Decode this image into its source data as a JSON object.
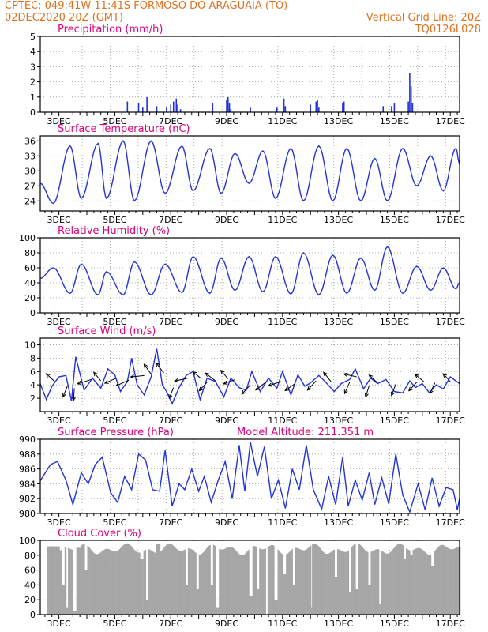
{
  "header": {
    "line1_left": "CPTEC:   049:41W-11:41S   FORMOSO DO ARAGUAIA (TO)",
    "line2_left": "02DEC2020 20Z (GMT)",
    "line2_right": "Vertical Grid Line: 20Z",
    "line3_right": "TQ0126L028"
  },
  "colors": {
    "header": "#e0701e",
    "title": "#e0007a",
    "line": "#2233dd",
    "bar": "#2233dd",
    "cloud": "#a6a6a6",
    "arrow": "#000000"
  },
  "chart_data": [
    {
      "id": "precip",
      "type": "bar",
      "title": "Precipitation (mm/h)",
      "extra_title": "",
      "xlabel": "",
      "ylabel": "",
      "x_range_days": [
        2.333,
        17.333
      ],
      "ylim": [
        0,
        5
      ],
      "yticks": [
        "0",
        "1",
        "2",
        "3",
        "4",
        "5"
      ],
      "x_tick_labels": [
        "3DEC",
        "5DEC",
        "7DEC",
        "9DEC",
        "11DEC",
        "13DEC",
        "15DEC",
        "17DEC"
      ],
      "grid": true,
      "bars": [
        [
          5.45,
          0.7
        ],
        [
          5.85,
          0.6
        ],
        [
          6.0,
          0.3
        ],
        [
          6.15,
          1.0
        ],
        [
          6.5,
          0.4
        ],
        [
          6.85,
          0.3
        ],
        [
          7.0,
          0.5
        ],
        [
          7.1,
          0.7
        ],
        [
          7.2,
          0.9
        ],
        [
          7.25,
          0.5
        ],
        [
          7.35,
          0.2
        ],
        [
          8.5,
          0.6
        ],
        [
          9.0,
          0.8
        ],
        [
          9.05,
          1.0
        ],
        [
          9.1,
          0.6
        ],
        [
          9.15,
          0.2
        ],
        [
          9.85,
          0.3
        ],
        [
          10.8,
          0.3
        ],
        [
          11.05,
          0.9
        ],
        [
          11.1,
          0.4
        ],
        [
          12.0,
          0.5
        ],
        [
          12.2,
          0.7
        ],
        [
          12.25,
          0.8
        ],
        [
          12.3,
          0.3
        ],
        [
          13.15,
          0.6
        ],
        [
          13.2,
          0.7
        ],
        [
          14.6,
          0.4
        ],
        [
          14.9,
          0.4
        ],
        [
          15.0,
          0.6
        ],
        [
          15.5,
          0.7
        ],
        [
          15.55,
          2.6
        ],
        [
          15.6,
          1.7
        ],
        [
          15.65,
          0.6
        ]
      ]
    },
    {
      "id": "temp",
      "type": "line",
      "title": "Surface Temperature (nC)",
      "extra_title": "",
      "xlabel": "",
      "ylabel": "",
      "x_range_days": [
        2.333,
        17.333
      ],
      "ylim": [
        22,
        37
      ],
      "yticks": [
        "24",
        "27",
        "30",
        "33",
        "36"
      ],
      "ytick_values": [
        24,
        27,
        30,
        33,
        36
      ],
      "x_tick_labels": [
        "3DEC",
        "5DEC",
        "7DEC",
        "9DEC",
        "11DEC",
        "13DEC",
        "15DEC",
        "17DEC"
      ],
      "grid": true,
      "min_days": [
        2.8,
        3.8,
        4.7,
        5.7,
        6.8,
        7.8,
        8.8,
        9.8,
        10.75,
        11.75,
        12.8,
        13.8,
        14.75,
        15.8,
        16.75
      ],
      "min_vals": [
        23.5,
        24.5,
        24.5,
        24.0,
        25.5,
        26.0,
        25.5,
        27.5,
        24.5,
        24.0,
        24.0,
        24.0,
        24.0,
        27.0,
        26.0
      ],
      "max_days": [
        3.4,
        4.4,
        5.3,
        6.3,
        7.4,
        8.4,
        9.3,
        10.3,
        11.3,
        12.3,
        13.3,
        14.3,
        15.3,
        16.3,
        17.2
      ],
      "max_vals": [
        35.0,
        35.5,
        36.0,
        36.0,
        35.0,
        34.5,
        33.5,
        34.0,
        34.5,
        35.0,
        34.5,
        32.5,
        34.5,
        33.0,
        34.5
      ],
      "start": 27.5,
      "end": 31.5
    },
    {
      "id": "rh",
      "type": "line",
      "title": "Relative Humidity (%)",
      "extra_title": "",
      "xlabel": "",
      "ylabel": "",
      "x_range_days": [
        2.333,
        17.333
      ],
      "ylim": [
        0,
        100
      ],
      "yticks": [
        "0",
        "20",
        "40",
        "60",
        "80",
        "100"
      ],
      "ytick_values": [
        0,
        20,
        40,
        60,
        80,
        100
      ],
      "x_tick_labels": [
        "3DEC",
        "5DEC",
        "7DEC",
        "9DEC",
        "11DEC",
        "13DEC",
        "15DEC",
        "17DEC"
      ],
      "grid": true,
      "min_days": [
        3.4,
        4.4,
        5.3,
        6.3,
        7.4,
        8.4,
        9.3,
        10.3,
        11.3,
        12.3,
        13.3,
        14.3,
        15.3,
        16.3,
        17.2
      ],
      "min_vals": [
        26,
        24,
        24,
        24,
        27,
        26,
        30,
        28,
        25,
        24,
        26,
        30,
        26,
        30,
        32
      ],
      "max_days": [
        2.8,
        3.8,
        4.7,
        5.7,
        6.8,
        7.8,
        8.8,
        9.8,
        10.75,
        11.75,
        12.8,
        13.8,
        14.75,
        15.8,
        16.75
      ],
      "max_vals": [
        60,
        65,
        55,
        68,
        65,
        75,
        73,
        75,
        75,
        80,
        77,
        73,
        88,
        62,
        60
      ],
      "start": 46,
      "end": 40
    },
    {
      "id": "wind",
      "type": "line",
      "title": "Surface Wind (m/s)",
      "extra_title": "",
      "xlabel": "",
      "ylabel": "",
      "x_range_days": [
        2.333,
        17.333
      ],
      "ylim": [
        0,
        11
      ],
      "yticks": [
        "2",
        "4",
        "6",
        "8",
        "10"
      ],
      "ytick_values": [
        2,
        4,
        6,
        8,
        10
      ],
      "x_tick_labels": [
        "3DEC",
        "5DEC",
        "7DEC",
        "9DEC",
        "11DEC",
        "13DEC",
        "15DEC",
        "17DEC"
      ],
      "grid": true,
      "points": [
        [
          2.33,
          4.2
        ],
        [
          2.55,
          1.8
        ],
        [
          2.75,
          3.8
        ],
        [
          3.0,
          5.2
        ],
        [
          3.25,
          5.4
        ],
        [
          3.45,
          1.6
        ],
        [
          3.6,
          8.2
        ],
        [
          3.9,
          3.2
        ],
        [
          4.2,
          5.0
        ],
        [
          4.5,
          3.5
        ],
        [
          4.75,
          6.4
        ],
        [
          5.0,
          5.5
        ],
        [
          5.2,
          3.0
        ],
        [
          5.45,
          4.5
        ],
        [
          5.6,
          8.0
        ],
        [
          5.8,
          4.0
        ],
        [
          6.05,
          2.5
        ],
        [
          6.3,
          5.2
        ],
        [
          6.5,
          9.4
        ],
        [
          6.7,
          4.0
        ],
        [
          6.85,
          3.0
        ],
        [
          7.05,
          1.2
        ],
        [
          7.3,
          3.6
        ],
        [
          7.55,
          5.4
        ],
        [
          7.8,
          6.0
        ],
        [
          8.05,
          1.8
        ],
        [
          8.3,
          5.0
        ],
        [
          8.6,
          4.5
        ],
        [
          8.9,
          2.2
        ],
        [
          9.15,
          5.0
        ],
        [
          9.45,
          3.6
        ],
        [
          9.7,
          3.2
        ],
        [
          9.9,
          6.0
        ],
        [
          10.2,
          3.0
        ],
        [
          10.5,
          5.0
        ],
        [
          10.8,
          3.5
        ],
        [
          11.0,
          6.0
        ],
        [
          11.3,
          2.5
        ],
        [
          11.55,
          5.5
        ],
        [
          11.8,
          3.8
        ],
        [
          12.0,
          4.3
        ],
        [
          12.3,
          5.4
        ],
        [
          12.5,
          4.6
        ],
        [
          12.85,
          3.0
        ],
        [
          13.1,
          4.2
        ],
        [
          13.4,
          4.8
        ],
        [
          13.6,
          6.4
        ],
        [
          13.9,
          3.4
        ],
        [
          14.15,
          5.0
        ],
        [
          14.4,
          4.2
        ],
        [
          14.7,
          4.8
        ],
        [
          15.0,
          3.0
        ],
        [
          15.3,
          2.8
        ],
        [
          15.55,
          4.6
        ],
        [
          15.75,
          3.6
        ],
        [
          16.0,
          4.2
        ],
        [
          16.25,
          2.8
        ],
        [
          16.5,
          4.0
        ],
        [
          16.75,
          3.4
        ],
        [
          17.0,
          5.2
        ],
        [
          17.33,
          4.2
        ]
      ],
      "arrows": [
        [
          2.85,
          4.5,
          -0.6,
          -0.55
        ],
        [
          3.3,
          3.8,
          -0.3,
          0.75
        ],
        [
          3.55,
          3.5,
          -0.05,
          0.85
        ],
        [
          4.15,
          4.8,
          -0.95,
          0.3
        ],
        [
          4.5,
          4.6,
          -0.5,
          -0.6
        ],
        [
          5.05,
          5.0,
          -0.8,
          0.35
        ],
        [
          5.5,
          4.7,
          -0.9,
          0.4
        ],
        [
          6.05,
          5.4,
          -0.95,
          0.1
        ],
        [
          6.3,
          5.6,
          -0.5,
          -0.7
        ],
        [
          6.75,
          5.8,
          -0.55,
          -0.7
        ],
        [
          7.1,
          3.6,
          -0.3,
          0.75
        ],
        [
          7.6,
          5.0,
          -0.9,
          0.2
        ],
        [
          8.1,
          4.9,
          -0.6,
          -0.5
        ],
        [
          8.3,
          4.4,
          -0.55,
          0.6
        ],
        [
          8.6,
          4.6,
          -0.7,
          -0.55
        ],
        [
          9.05,
          4.9,
          -0.5,
          -0.6
        ],
        [
          9.3,
          4.8,
          -0.8,
          0.3
        ],
        [
          9.85,
          4.0,
          -0.6,
          0.65
        ],
        [
          10.4,
          4.4,
          -0.7,
          0.55
        ],
        [
          10.95,
          4.5,
          -0.9,
          0.3
        ],
        [
          11.45,
          4.2,
          -0.7,
          0.5
        ],
        [
          12.2,
          4.6,
          -0.6,
          0.65
        ],
        [
          12.75,
          4.4,
          -0.55,
          -0.7
        ],
        [
          13.4,
          4.4,
          -0.35,
          0.8
        ],
        [
          13.65,
          5.2,
          -0.9,
          -0.2
        ],
        [
          14.1,
          3.9,
          -0.25,
          0.8
        ],
        [
          14.4,
          4.3,
          -0.6,
          -0.55
        ],
        [
          15.05,
          4.1,
          -0.3,
          0.8
        ],
        [
          15.8,
          4.4,
          -0.55,
          0.6
        ],
        [
          16.05,
          4.5,
          -0.6,
          -0.5
        ],
        [
          16.45,
          4.3,
          -0.35,
          0.75
        ],
        [
          17.0,
          4.5,
          -0.5,
          -0.55
        ]
      ]
    },
    {
      "id": "pressure",
      "type": "line",
      "title": "Surface Pressure (hPa)",
      "extra_title": "Model Altitude: 211.351 m",
      "xlabel": "",
      "ylabel": "",
      "x_range_days": [
        2.333,
        17.333
      ],
      "ylim": [
        980,
        990
      ],
      "yticks": [
        "980",
        "982",
        "984",
        "986",
        "988",
        "990"
      ],
      "ytick_values": [
        980,
        982,
        984,
        986,
        988,
        990
      ],
      "x_tick_labels": [
        "3DEC",
        "5DEC",
        "7DEC",
        "9DEC",
        "11DEC",
        "13DEC",
        "15DEC",
        "17DEC"
      ],
      "grid": true,
      "points": [
        [
          2.33,
          984.4
        ],
        [
          2.7,
          986.6
        ],
        [
          2.95,
          987.0
        ],
        [
          3.25,
          984.5
        ],
        [
          3.5,
          981.2
        ],
        [
          3.8,
          985.5
        ],
        [
          4.05,
          984.0
        ],
        [
          4.3,
          986.6
        ],
        [
          4.55,
          987.6
        ],
        [
          4.85,
          982.8
        ],
        [
          5.1,
          981.5
        ],
        [
          5.35,
          985.0
        ],
        [
          5.6,
          983.2
        ],
        [
          5.85,
          988.0
        ],
        [
          6.1,
          987.2
        ],
        [
          6.35,
          983.2
        ],
        [
          6.6,
          983.0
        ],
        [
          6.8,
          988.5
        ],
        [
          7.05,
          981.0
        ],
        [
          7.3,
          984.0
        ],
        [
          7.5,
          983.2
        ],
        [
          7.75,
          986.0
        ],
        [
          8.0,
          983.0
        ],
        [
          8.2,
          985.0
        ],
        [
          8.45,
          981.5
        ],
        [
          8.7,
          984.5
        ],
        [
          8.95,
          987.0
        ],
        [
          9.2,
          982.0
        ],
        [
          9.45,
          989.2
        ],
        [
          9.65,
          983.0
        ],
        [
          9.85,
          989.6
        ],
        [
          10.1,
          985.0
        ],
        [
          10.35,
          989.0
        ],
        [
          10.6,
          982.0
        ],
        [
          10.85,
          984.5
        ],
        [
          11.1,
          980.7
        ],
        [
          11.35,
          986.0
        ],
        [
          11.6,
          983.2
        ],
        [
          11.85,
          989.2
        ],
        [
          12.1,
          983.2
        ],
        [
          12.4,
          980.6
        ],
        [
          12.65,
          985.0
        ],
        [
          12.9,
          981.2
        ],
        [
          13.15,
          987.6
        ],
        [
          13.35,
          981.0
        ],
        [
          13.6,
          984.5
        ],
        [
          13.85,
          981.8
        ],
        [
          14.1,
          985.5
        ],
        [
          14.3,
          981.2
        ],
        [
          14.55,
          984.8
        ],
        [
          14.8,
          981.3
        ],
        [
          15.05,
          988.0
        ],
        [
          15.3,
          982.5
        ],
        [
          15.55,
          980.2
        ],
        [
          15.85,
          984.0
        ],
        [
          16.1,
          980.5
        ],
        [
          16.35,
          984.8
        ],
        [
          16.6,
          981.0
        ],
        [
          16.85,
          983.5
        ],
        [
          17.1,
          983.2
        ],
        [
          17.25,
          980.5
        ],
        [
          17.33,
          982.0
        ]
      ]
    },
    {
      "id": "cloud",
      "type": "bar",
      "title": "Cloud Cover (%)",
      "extra_title": "",
      "xlabel": "",
      "ylabel": "",
      "x_range_days": [
        2.333,
        17.333
      ],
      "ylim": [
        0,
        100
      ],
      "yticks": [
        "0",
        "20",
        "40",
        "60",
        "80",
        "100"
      ],
      "ytick_values": [
        0,
        20,
        40,
        60,
        80,
        100
      ],
      "x_tick_labels": [
        "3DEC",
        "5DEC",
        "7DEC",
        "9DEC",
        "11DEC",
        "13DEC",
        "15DEC",
        "17DEC"
      ],
      "grid": true,
      "base_level": 88,
      "segments": [
        [
          2.333,
          2.55,
          0
        ],
        [
          2.55,
          3.0,
          92
        ],
        [
          3.1,
          3.2,
          40
        ],
        [
          3.25,
          3.3,
          10
        ],
        [
          3.5,
          3.6,
          5
        ],
        [
          3.6,
          3.75,
          90
        ],
        [
          3.9,
          4.0,
          60
        ],
        [
          5.9,
          6.0,
          75
        ],
        [
          6.1,
          6.2,
          20
        ],
        [
          6.45,
          6.6,
          95
        ],
        [
          7.5,
          7.6,
          40
        ],
        [
          7.9,
          8.0,
          35
        ],
        [
          8.4,
          8.5,
          40
        ],
        [
          8.6,
          8.7,
          10
        ],
        [
          9.8,
          9.9,
          25
        ],
        [
          10.05,
          10.15,
          35
        ],
        [
          10.4,
          10.45,
          0
        ],
        [
          10.7,
          10.8,
          20
        ],
        [
          11.0,
          11.1,
          55
        ],
        [
          11.35,
          11.45,
          40
        ],
        [
          12.0,
          12.05,
          10
        ],
        [
          12.85,
          12.95,
          50
        ],
        [
          13.35,
          13.45,
          30
        ],
        [
          13.6,
          13.7,
          35
        ],
        [
          14.05,
          14.15,
          40
        ],
        [
          14.45,
          14.5,
          15
        ],
        [
          15.3,
          15.4,
          75
        ],
        [
          15.55,
          15.65,
          80
        ],
        [
          16.3,
          16.4,
          65
        ]
      ]
    }
  ]
}
